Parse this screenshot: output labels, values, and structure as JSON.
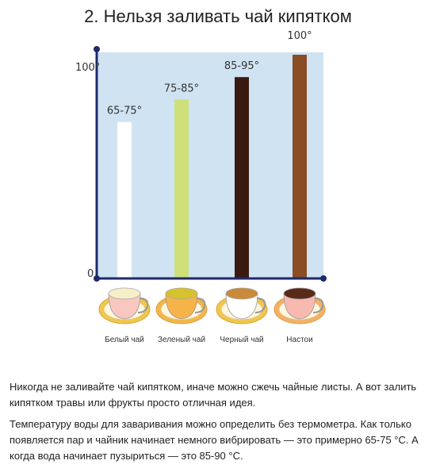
{
  "header": {
    "title": "2. Нельзя заливать чай кипятком"
  },
  "chart_data": {
    "type": "bar",
    "categories": [
      "Белый чай",
      "Зеленый чай",
      "Черный чай",
      "Настои"
    ],
    "values": [
      70,
      80,
      90,
      100
    ],
    "data_labels": [
      "65-75°",
      "75-85°",
      "85-95°",
      "100°"
    ],
    "ytick_labels": [
      "0",
      "100°"
    ],
    "ylim": [
      0,
      100
    ],
    "title": "",
    "xlabel": "",
    "ylabel": "",
    "grid": false,
    "colors": {
      "background": "#cfe3f2",
      "axis": "#1f2a6b",
      "bars": [
        "#ffffff",
        "#cfe07a",
        "#3a1a10",
        "#8a4e24"
      ]
    }
  },
  "text": {
    "p1": "Никогда не заливайте чай кипятком, иначе можно сжечь чайные листы. А вот залить кипятком травы или фрукты просто отличная идея.",
    "p2": "Температуру воды для заваривания можно определить без термометра. Как только появляется пар и чайник начинает немного вибрировать — это примерно 65-75 °C. А когда вода начинает пузыриться — это 85-90 °C."
  }
}
